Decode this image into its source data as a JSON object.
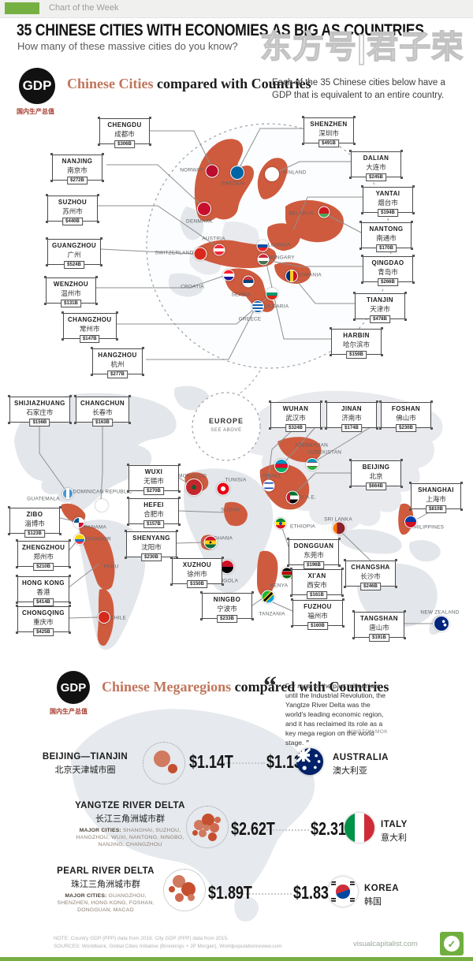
{
  "palette": {
    "accent_green": "#76b043",
    "map_orange": "#cf5b3e",
    "box_border": "#4a4a4a",
    "title_salmon": "#c0765c"
  },
  "topbar": {
    "label": "Chart of the Week"
  },
  "header": {
    "title": "35 CHINESE CITIES WITH ECONOMIES AS BIG AS COUNTRIES",
    "subtitle": "How many of these massive cities do you know?",
    "watermark": "东方号|君子荣"
  },
  "s1": {
    "logo": "GDP",
    "logo_sub": "国内生产总值",
    "heading_em": "Chinese Cities",
    "heading_rest": " compared with Countries",
    "blurb": "Each of the 35 Chinese cities below have a GDP that is equivalent to an entire country.",
    "cities": [
      {
        "id": "chengdu",
        "name": "CHENGDU",
        "chinese": "成都市",
        "gdp": "$306B"
      },
      {
        "id": "nanjing",
        "name": "NANJING",
        "chinese": "南京市",
        "gdp": "$272B"
      },
      {
        "id": "suzhou",
        "name": "SUZHOU",
        "chinese": "苏州市",
        "gdp": "$440B"
      },
      {
        "id": "guangzhou",
        "name": "GUANGZHOU",
        "chinese": "广州",
        "gdp": "$524B"
      },
      {
        "id": "wenzhou",
        "name": "WENZHOU",
        "chinese": "温州市",
        "gdp": "$131B"
      },
      {
        "id": "changzhou",
        "name": "CHANGZHOU",
        "chinese": "常州市",
        "gdp": "$147B"
      },
      {
        "id": "hangzhou",
        "name": "HANGZHOU",
        "chinese": "杭州",
        "gdp": "$277B"
      },
      {
        "id": "shenzhen",
        "name": "SHENZHEN",
        "chinese": "深圳市",
        "gdp": "$491B"
      },
      {
        "id": "dalian",
        "name": "DALIAN",
        "chinese": "大连市",
        "gdp": "$245B"
      },
      {
        "id": "yantai",
        "name": "YANTAI",
        "chinese": "烟台市",
        "gdp": "$194B"
      },
      {
        "id": "nantong",
        "name": "NANTONG",
        "chinese": "南通市",
        "gdp": "$170B"
      },
      {
        "id": "qingdao",
        "name": "QINGDAO",
        "chinese": "青岛市",
        "gdp": "$266B"
      },
      {
        "id": "tianjin",
        "name": "TIANJIN",
        "chinese": "天津市",
        "gdp": "$478B"
      },
      {
        "id": "harbin",
        "name": "HARBIN",
        "chinese": "哈尔滨市",
        "gdp": "$159B"
      }
    ],
    "countries": [
      "NORWAY",
      "SWEDEN",
      "FINLAND",
      "DENMARK",
      "BELARUS",
      "AUSTRIA",
      "SWITZERLAND",
      "SLOVAKIA",
      "HUNGARY",
      "ROMANIA",
      "CROATIA",
      "SERBIA",
      "BULGARIA",
      "GREECE"
    ]
  },
  "s2": {
    "inset_title": "EUROPE",
    "inset_sub": "SEE ABOVE",
    "cities": [
      {
        "id": "shijiazhuang",
        "name": "SHIJIAZHUANG",
        "chinese": "石家庄市",
        "gdp": "$156B"
      },
      {
        "id": "changchun",
        "name": "CHANGCHUN",
        "chinese": "长春市",
        "gdp": "$163B"
      },
      {
        "id": "wuhan",
        "name": "WUHAN",
        "chinese": "武汉市",
        "gdp": "$324B"
      },
      {
        "id": "jinan",
        "name": "JINAN",
        "chinese": "济南市",
        "gdp": "$174B"
      },
      {
        "id": "foshan",
        "name": "FOSHAN",
        "chinese": "佛山市",
        "gdp": "$230B"
      },
      {
        "id": "wuxi",
        "name": "WUXI",
        "chinese": "无锡市",
        "gdp": "$270B"
      },
      {
        "id": "beijing",
        "name": "BEIJING",
        "chinese": "北京",
        "gdp": "$664B"
      },
      {
        "id": "shanghai",
        "name": "SHANGHAI",
        "chinese": "上海市",
        "gdp": "$810B"
      },
      {
        "id": "hefei",
        "name": "HEFEI",
        "chinese": "合肥市",
        "gdp": "$157B"
      },
      {
        "id": "zibo",
        "name": "ZIBO",
        "chinese": "淄博市",
        "gdp": "$123B"
      },
      {
        "id": "shenyang",
        "name": "SHENYANG",
        "chinese": "沈阳市",
        "gdp": "$230B"
      },
      {
        "id": "zhengzhou",
        "name": "ZHENGZHOU",
        "chinese": "郑州市",
        "gdp": "$210B"
      },
      {
        "id": "xuzhou",
        "name": "XUZHOU",
        "chinese": "徐州市",
        "gdp": "$150B"
      },
      {
        "id": "hongkong",
        "name": "HONG KONG",
        "chinese": "香港",
        "gdp": "$414B"
      },
      {
        "id": "dongguan",
        "name": "DONGGUAN",
        "chinese": "东莞市",
        "gdp": "$196B"
      },
      {
        "id": "xian",
        "name": "XI'AN",
        "chinese": "西安市",
        "gdp": "$161B"
      },
      {
        "id": "changsha",
        "name": "CHANGSHA",
        "chinese": "长沙市",
        "gdp": "$246B"
      },
      {
        "id": "chongqing",
        "name": "CHONGQING",
        "chinese": "重庆市",
        "gdp": "$425B"
      },
      {
        "id": "ningbo",
        "name": "NINGBO",
        "chinese": "宁波市",
        "gdp": "$233B"
      },
      {
        "id": "fuzhou",
        "name": "FUZHOU",
        "chinese": "福州市",
        "gdp": "$160B"
      },
      {
        "id": "tangshan",
        "name": "TANGSHAN",
        "chinese": "唐山市",
        "gdp": "$191B"
      }
    ],
    "countries": [
      "GUATEMALA",
      "DOMINICAN REPUBLIC",
      "PANAMA",
      "ECUADOR",
      "PERU",
      "CHILE",
      "MOROCCO",
      "TUNISIA",
      "SUDAN",
      "GHANA",
      "ANGOLA",
      "KENYA",
      "TANZANIA",
      "ETHIOPIA",
      "AZERBAIJAN",
      "UZBEKISTAN",
      "ISRAEL",
      "U.A.E.",
      "SRI LANKA",
      "PHILIPPINES",
      "NEW ZEALAND"
    ]
  },
  "s3": {
    "logo": "GDP",
    "logo_sub": "国内生产总值",
    "heading_em": "Chinese Megaregions",
    "heading_rest": " compared with Countries",
    "quote_open": "“",
    "quote": "For most of the past millennium until the Industrial Revolution, the Yangtze River Delta was the world's leading economic region, and it has reclaimed its role as a key mega region on the world stage.",
    "quote_close": "”",
    "quote_attrib": "— WINSTON MOK",
    "rows": [
      {
        "region": "BEIJING—TIANJIN",
        "chinese": "北京天津城市圈",
        "cities_label": "",
        "cities": "",
        "gdp": "$1.14T",
        "country_gdp": "$1.13T",
        "country": "AUSTRALIA",
        "country_chinese": "澳大利亚"
      },
      {
        "region": "YANGTZE RIVER DELTA",
        "chinese": "长江三角洲城市群",
        "cities_label": "MAJOR CITIES:",
        "cities": "SHANGHAI, SUZHOU, HANGZHOU, WUXI, NANTONG, NINGBO, NANJING, CHANGZHOU",
        "gdp": "$2.62T",
        "country_gdp": "$2.31T",
        "country": "ITALY",
        "country_chinese": "意大利"
      },
      {
        "region": "PEARL RIVER DELTA",
        "chinese": "珠江三角洲城市群",
        "cities_label": "MAJOR CITIES:",
        "cities": "GUANGZHOU, SHENZHEN, HONG KONG, FOSHAN, DONGGUAN, MACAO",
        "gdp": "$1.89T",
        "country_gdp": "$1.83T",
        "country": "KOREA",
        "country_chinese": "韩国"
      }
    ]
  },
  "footer": {
    "note": "NOTE: Country GDP (PPP) data from 2016. City GDP (PPP) data from 2015.",
    "sources": "SOURCES: Worldbank, Global Cities Initiative (Brookings + JP Morgan), Worldpopulationreview.com",
    "site": "visualcapitalist.com"
  },
  "chart_data": {
    "type": "pictorial comparison infographic",
    "title": "35 Chinese Cities with Economies as Big as Countries",
    "units": "GDP (PPP), USD billions",
    "cities": [
      {
        "city": "Shanghai",
        "gdp_b": 810
      },
      {
        "city": "Beijing",
        "gdp_b": 664
      },
      {
        "city": "Guangzhou",
        "gdp_b": 524
      },
      {
        "city": "Shenzhen",
        "gdp_b": 491
      },
      {
        "city": "Tianjin",
        "gdp_b": 478
      },
      {
        "city": "Suzhou",
        "gdp_b": 440
      },
      {
        "city": "Chongqing",
        "gdp_b": 425
      },
      {
        "city": "Hong Kong",
        "gdp_b": 414
      },
      {
        "city": "Wuhan",
        "gdp_b": 324
      },
      {
        "city": "Chengdu",
        "gdp_b": 306
      },
      {
        "city": "Hangzhou",
        "gdp_b": 277
      },
      {
        "city": "Nanjing",
        "gdp_b": 272
      },
      {
        "city": "Wuxi",
        "gdp_b": 270
      },
      {
        "city": "Qingdao",
        "gdp_b": 266
      },
      {
        "city": "Changsha",
        "gdp_b": 246
      },
      {
        "city": "Dalian",
        "gdp_b": 245
      },
      {
        "city": "Ningbo",
        "gdp_b": 233
      },
      {
        "city": "Foshan",
        "gdp_b": 230
      },
      {
        "city": "Shenyang",
        "gdp_b": 230
      },
      {
        "city": "Zhengzhou",
        "gdp_b": 210
      },
      {
        "city": "Dongguan",
        "gdp_b": 196
      },
      {
        "city": "Yantai",
        "gdp_b": 194
      },
      {
        "city": "Tangshan",
        "gdp_b": 191
      },
      {
        "city": "Jinan",
        "gdp_b": 174
      },
      {
        "city": "Nantong",
        "gdp_b": 170
      },
      {
        "city": "Changchun",
        "gdp_b": 163
      },
      {
        "city": "Xi'an",
        "gdp_b": 161
      },
      {
        "city": "Fuzhou",
        "gdp_b": 160
      },
      {
        "city": "Harbin",
        "gdp_b": 159
      },
      {
        "city": "Hefei",
        "gdp_b": 157
      },
      {
        "city": "Sh ijiazhuang",
        "gdp_b": 156
      },
      {
        "city": "Xuzhou",
        "gdp_b": 150
      },
      {
        "city": "Changzhou",
        "gdp_b": 147
      },
      {
        "city": "Wenzhou",
        "gdp_b": 131
      },
      {
        "city": "Zibo",
        "gdp_b": 123
      }
    ],
    "megaregions": [
      {
        "region": "Beijing—Tianjin",
        "gdp": "$1.14T",
        "compared_country": "Australia",
        "country_gdp": "$1.13T"
      },
      {
        "region": "Yangtze River Delta",
        "gdp": "$2.62T",
        "compared_country": "Italy",
        "country_gdp": "$2.31T"
      },
      {
        "region": "Pearl River Delta",
        "gdp": "$1.89T",
        "compared_country": "Korea",
        "country_gdp": "$1.83T"
      }
    ]
  }
}
